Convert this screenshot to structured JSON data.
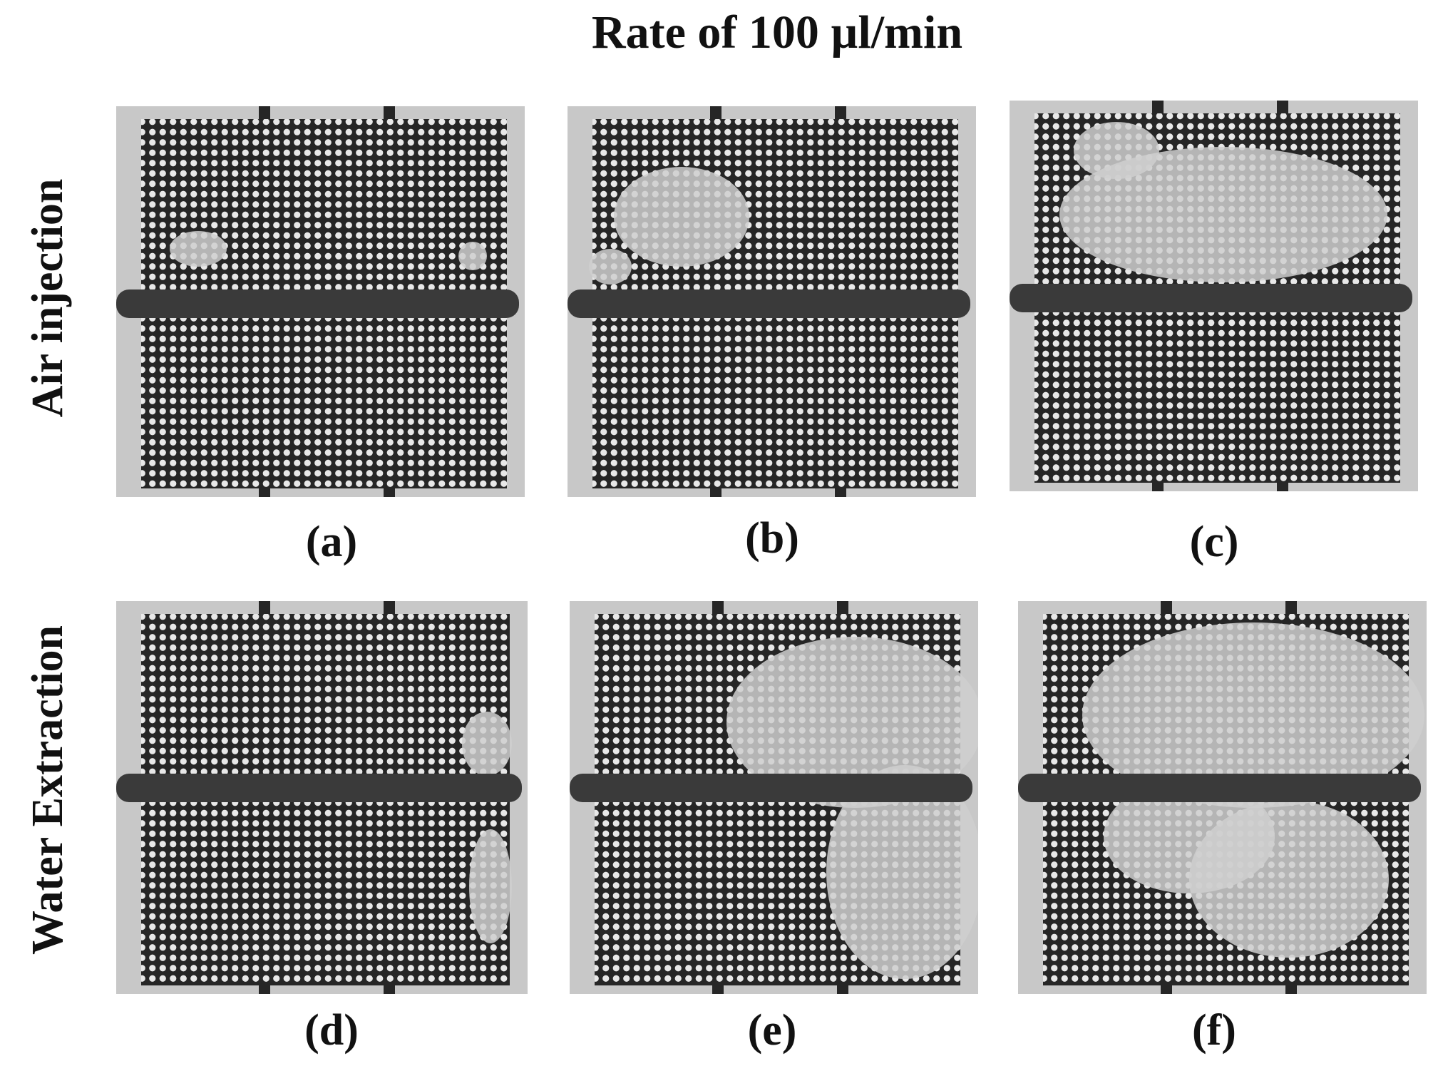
{
  "title": "Rate of 100 µl/min",
  "row_labels": [
    "Air injection",
    "Water Extraction"
  ],
  "panels": [
    {
      "label": "(a)",
      "row": "Air injection"
    },
    {
      "label": "(b)",
      "row": "Air injection"
    },
    {
      "label": "(c)",
      "row": "Air injection"
    },
    {
      "label": "(d)",
      "row": "Water Extraction"
    },
    {
      "label": "(e)",
      "row": "Water Extraction"
    },
    {
      "label": "(f)",
      "row": "Water Extraction"
    }
  ],
  "colors": {
    "background": "#ffffff",
    "chip": "#c8c8c8",
    "pore_network": "#262626",
    "channel": "#3a3a3a",
    "air_region": "#cfcfcf"
  }
}
